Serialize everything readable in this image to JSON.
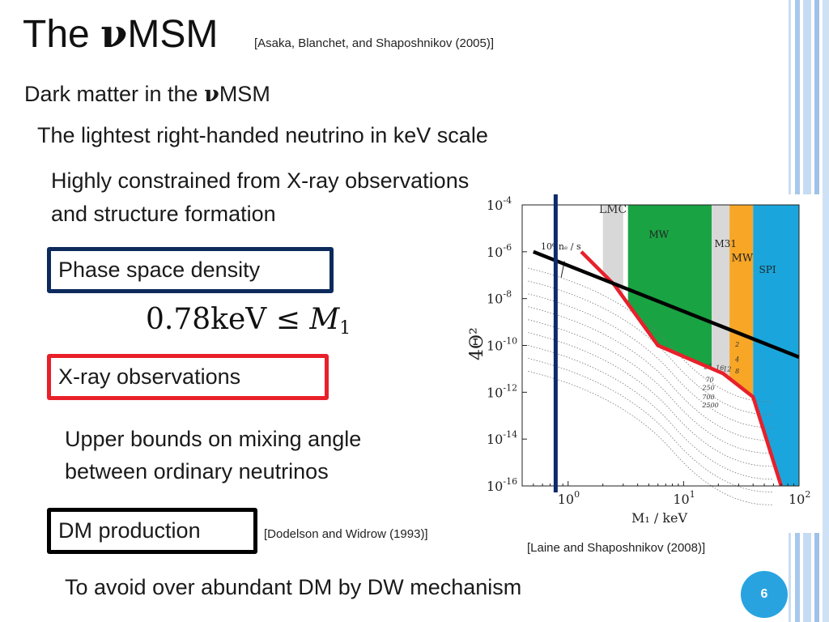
{
  "slide": {
    "title_prefix": "The ",
    "title_nu": "ν",
    "title_suffix": "MSM",
    "title_citation": "[Asaka, Blanchet, and Shaposhnikov (2005)]",
    "subtitle_prefix": "Dark matter in the ",
    "subtitle_nu": "ν",
    "subtitle_suffix": "MSM",
    "line1": "The lightest right-handed neutrino in keV scale",
    "line2a": "Highly constrained from X-ray observations",
    "line2b": "and structure formation",
    "box_phase": "Phase space density",
    "formula_lhs": "0.78keV ≤ ",
    "formula_var": "M",
    "formula_sub": "1",
    "box_xray": "X-ray observations",
    "xray_desc1": "Upper bounds on mixing angle",
    "xray_desc2": "between ordinary neutrinos",
    "box_dm": "DM production",
    "dm_citation": "[Dodelson and Widrow (1993)]",
    "bottom_text": "To avoid over abundant DM by DW mechanism",
    "figure_citation": "[Laine and Shaposhnikov (2008)]",
    "page_number": "6"
  },
  "colors": {
    "phase_box": "#0d2a5c",
    "xray_box": "#e8202a",
    "dm_box": "#000000",
    "page_badge": "#29a3e0"
  },
  "chart_data": {
    "type": "area",
    "xlabel": "M₁ / keV",
    "ylabel": "4Θ²",
    "x_scale": "log",
    "y_scale": "log",
    "xlim": [
      0.4,
      100
    ],
    "ylim": [
      1e-16,
      0.0001
    ],
    "x_ticks": [
      {
        "value": 1,
        "base": "10",
        "exp": "0"
      },
      {
        "value": 10,
        "base": "10",
        "exp": "1"
      },
      {
        "value": 100,
        "base": "10",
        "exp": "2"
      }
    ],
    "y_ticks": [
      {
        "value": -4,
        "base": "10",
        "exp": "-4"
      },
      {
        "value": -6,
        "base": "10",
        "exp": "-6"
      },
      {
        "value": -8,
        "base": "10",
        "exp": "-8"
      },
      {
        "value": -10,
        "base": "10",
        "exp": "-10"
      },
      {
        "value": -12,
        "base": "10",
        "exp": "-12"
      },
      {
        "value": -14,
        "base": "10",
        "exp": "-14"
      },
      {
        "value": -16,
        "base": "10",
        "exp": "-16"
      }
    ],
    "regions": [
      {
        "name": "LMC",
        "color": "#d8d8d8",
        "x": [
          2.0,
          3.0
        ]
      },
      {
        "name": "MW",
        "color": "#1aa343",
        "x": [
          3.3,
          17.5
        ]
      },
      {
        "name": "M31",
        "color": "#d8d8d8",
        "x": [
          17.5,
          25
        ]
      },
      {
        "name": "MW",
        "color": "#f7a626",
        "x": [
          25,
          40
        ]
      },
      {
        "name": "SPI",
        "color": "#1aa6dc",
        "x": [
          40,
          100
        ]
      }
    ],
    "annotation_n": "10⁶ nₑ / s",
    "contour_labels": [
      "25",
      "16",
      "12",
      "70",
      "250",
      "700",
      "2500",
      "2",
      "4",
      "8"
    ],
    "red_bound": [
      [
        1.3,
        -6.0
      ],
      [
        2.5,
        -7.4
      ],
      [
        6.0,
        -10.0
      ],
      [
        22,
        -11.2
      ],
      [
        40,
        -12.2
      ],
      [
        70,
        -16.0
      ]
    ],
    "black_line": [
      [
        0.5,
        -6.0
      ],
      [
        100,
        -10.5
      ]
    ],
    "blue_line_x": 0.78
  }
}
